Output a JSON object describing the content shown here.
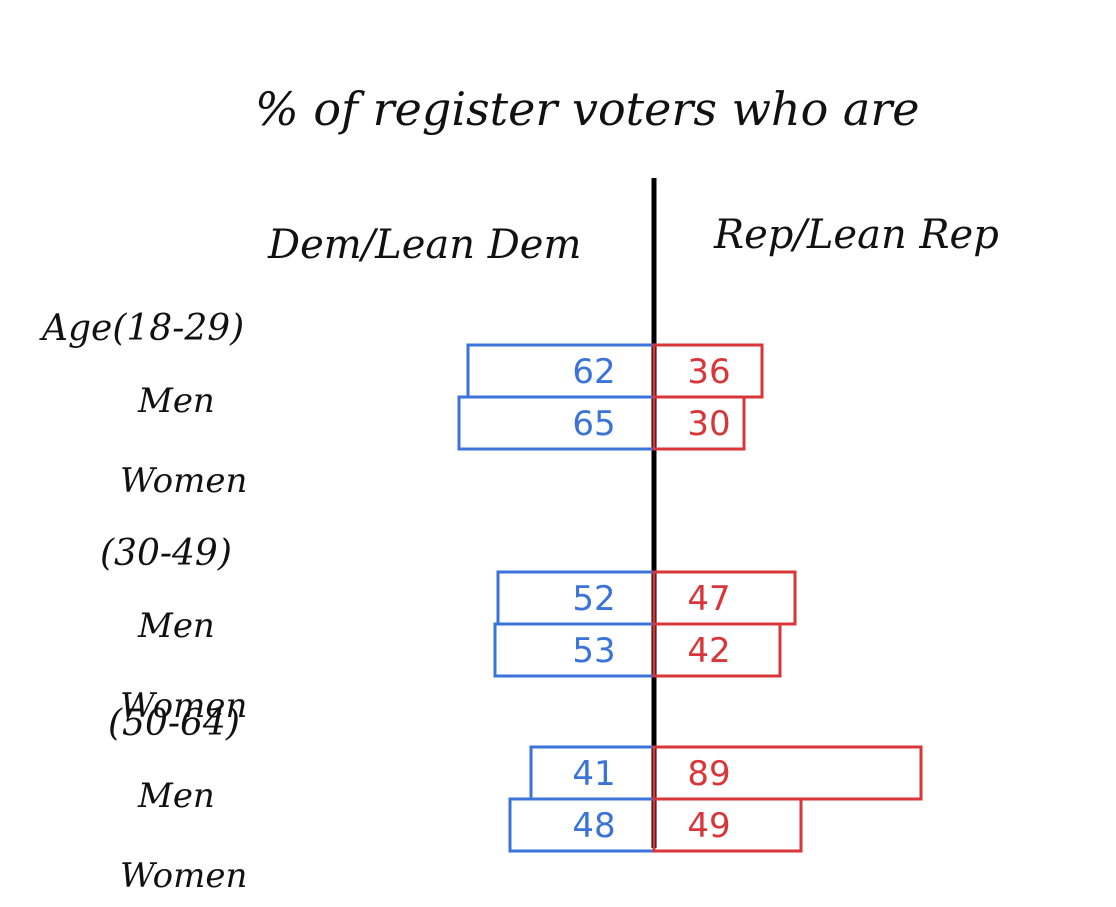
{
  "chart_data": {
    "type": "bar",
    "title": "% of register voters who are",
    "left_header": "Dem/Lean Dem",
    "right_header": "Rep/Lean Rep",
    "groups": [
      {
        "label": "Age(18-29)",
        "rows": [
          {
            "label": "Men",
            "dem": 62,
            "rep": 36
          },
          {
            "label": "Women",
            "dem": 65,
            "rep": 30
          }
        ]
      },
      {
        "label": "(30-49)",
        "rows": [
          {
            "label": "Men",
            "dem": 52,
            "rep": 47
          },
          {
            "label": "Women",
            "dem": 53,
            "rep": 42
          }
        ]
      },
      {
        "label": "(50-64)",
        "rows": [
          {
            "label": "Men",
            "dem": 41,
            "rep": 89
          },
          {
            "label": "Women",
            "dem": 48,
            "rep": 49
          }
        ]
      }
    ],
    "series": [
      {
        "name": "Dem/Lean Dem",
        "color": "#3a73d9"
      },
      {
        "name": "Rep/Lean Rep",
        "color": "#d9363a"
      }
    ]
  }
}
